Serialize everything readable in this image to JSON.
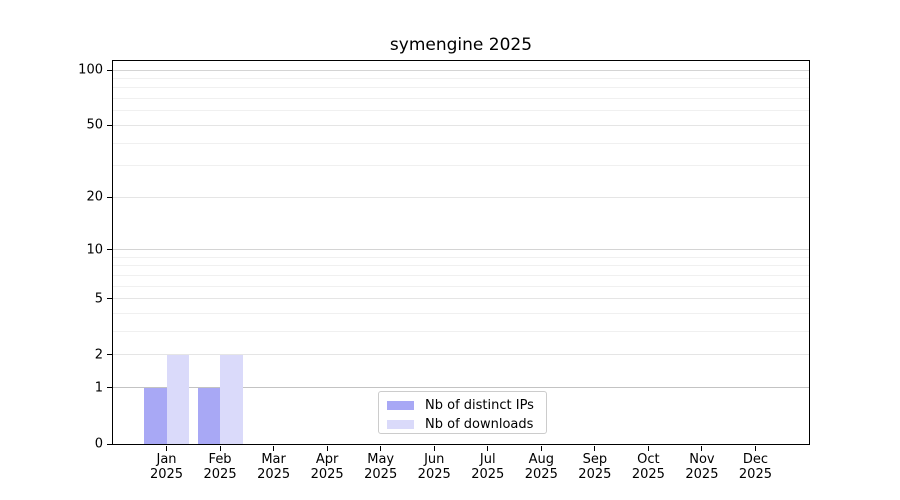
{
  "chart_data": {
    "type": "bar",
    "title": "symengine 2025",
    "year_label": "2025",
    "months": [
      "Jan",
      "Feb",
      "Mar",
      "Apr",
      "May",
      "Jun",
      "Jul",
      "Aug",
      "Sep",
      "Oct",
      "Nov",
      "Dec"
    ],
    "series": [
      {
        "name": "Nb of distinct IPs",
        "color": "#a8a8f5",
        "values": [
          1,
          1,
          0,
          0,
          0,
          0,
          0,
          0,
          0,
          0,
          0,
          0
        ]
      },
      {
        "name": "Nb of downloads",
        "color": "#dadafa",
        "values": [
          2,
          2,
          0,
          0,
          0,
          0,
          0,
          0,
          0,
          0,
          0,
          0
        ]
      }
    ],
    "yscale": "log1p",
    "yticks": [
      0,
      1,
      2,
      5,
      10,
      20,
      50,
      100
    ],
    "ylim": [
      0,
      112
    ],
    "grid": "on",
    "gridlines": {
      "strong": [
        1
      ],
      "major": [
        10,
        100
      ],
      "mid": [
        2,
        5,
        20,
        50
      ],
      "minor": [
        3,
        4,
        6,
        7,
        8,
        9,
        30,
        40,
        60,
        70,
        80,
        90
      ]
    },
    "legend_position": "lower center"
  },
  "palette": {
    "axis": "#000000",
    "grid_strong": "#c3c3c3",
    "grid_major": "#d4d4d4",
    "grid_mid": "#e5e5e5",
    "grid_minor": "#f0f0f0",
    "background": "#ffffff"
  }
}
